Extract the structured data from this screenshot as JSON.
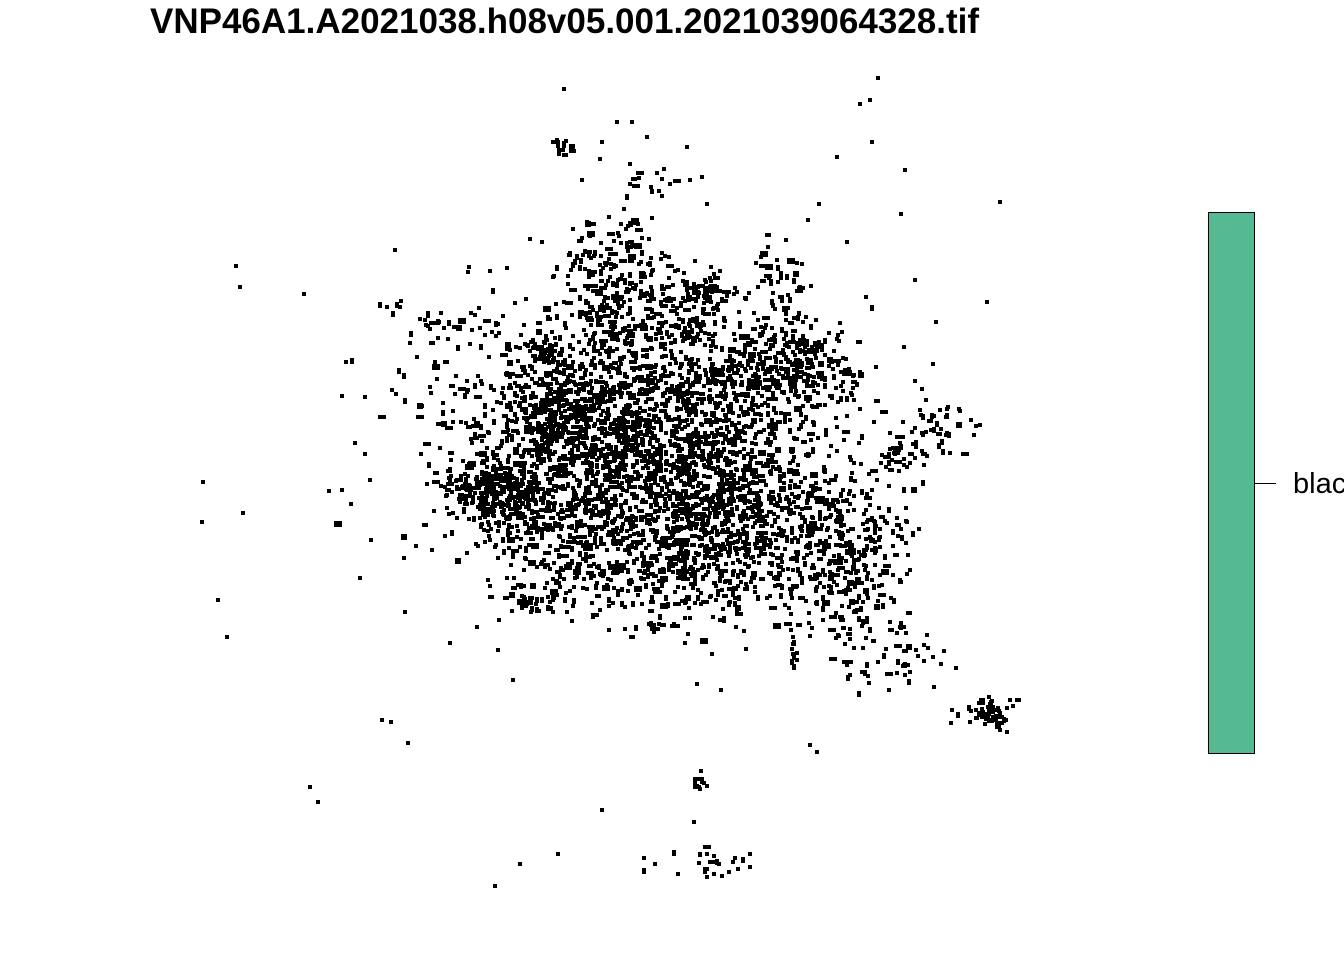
{
  "title": "VNP46A1.A2021038.h08v05.001.2021039064328.tif",
  "legend": {
    "label": "blac",
    "color": "#55b994"
  },
  "map": {
    "point_color": "#000000",
    "background": "#ffffff"
  }
}
